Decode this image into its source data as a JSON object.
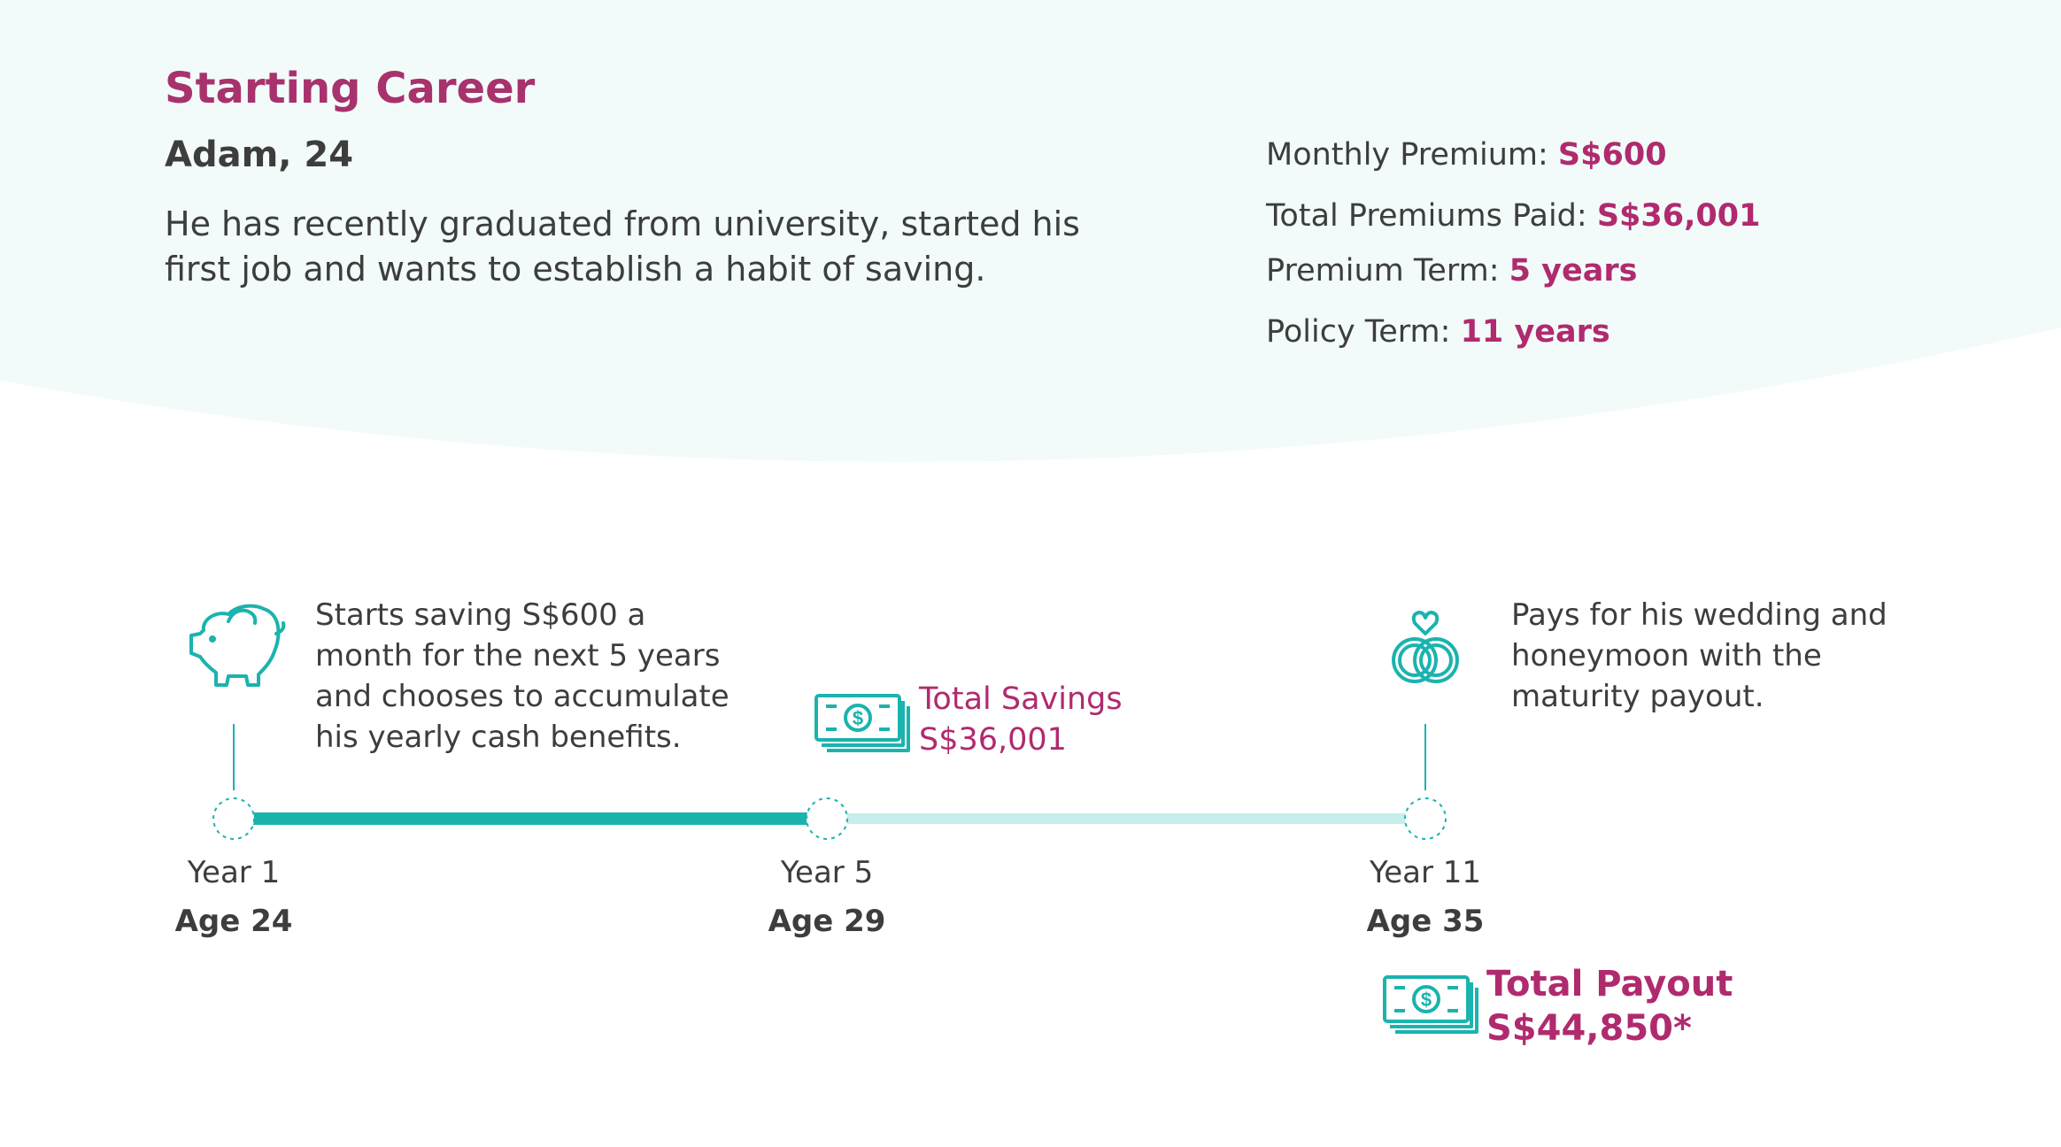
{
  "header": {
    "title": "Starting Career",
    "persona": "Adam, 24",
    "description": "He has recently graduated from university, started his first job and wants to establish a habit of saving."
  },
  "policy": {
    "monthly_premium": {
      "label": "Monthly Premium: ",
      "value": "S$600"
    },
    "total_premiums_paid": {
      "label": "Total Premiums Paid: ",
      "value": "S$36,001"
    },
    "premium_term": {
      "label": "Premium Term: ",
      "value": "5 years"
    },
    "policy_term": {
      "label": "Policy Term: ",
      "value": "11 years"
    }
  },
  "timeline": {
    "milestones": [
      {
        "year": "Year 1",
        "age": "Age 24"
      },
      {
        "year": "Year 5",
        "age": "Age 29"
      },
      {
        "year": "Year 11",
        "age": "Age 35"
      }
    ],
    "start_note": "Starts saving S$600 a month for the next 5 years and chooses to accumulate his yearly cash benefits.",
    "end_note": "Pays for his wedding and honeymoon with the maturity payout.",
    "savings_label": "Total Savings",
    "savings_value": "S$36,001",
    "payout_label": "Total Payout",
    "payout_value": "S$44,850*"
  },
  "icons": [
    "piggy-bank-icon",
    "cash-stack-icon",
    "wedding-rings-icon",
    "cash-stack-icon"
  ],
  "colors": {
    "accent": "#a8326d",
    "teal": "#1bb3ae",
    "teal_light": "#c6eeeb",
    "hero_bg": "#f2fbfa"
  }
}
